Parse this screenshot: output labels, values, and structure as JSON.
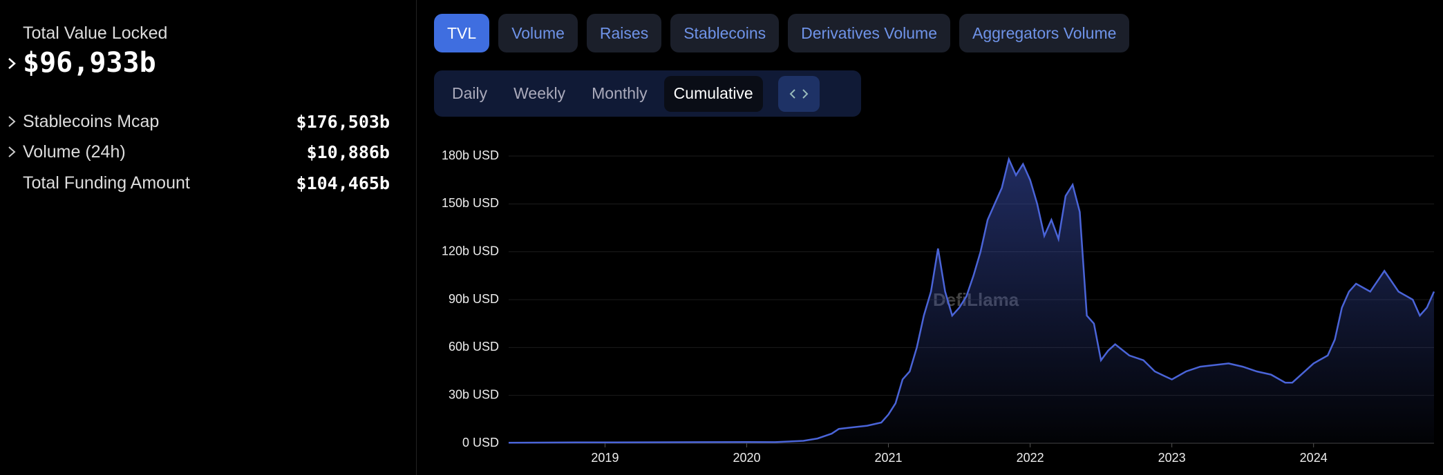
{
  "sidebar": {
    "main": {
      "label": "Total Value Locked",
      "value": "$96,933b"
    },
    "rows": [
      {
        "label": "Stablecoins Mcap",
        "value": "$176,503b"
      },
      {
        "label": "Volume (24h)",
        "value": "$10,886b"
      },
      {
        "label": "Total Funding Amount",
        "value": "$104,465b"
      }
    ]
  },
  "tabs": [
    "TVL",
    "Volume",
    "Raises",
    "Stablecoins",
    "Derivatives Volume",
    "Aggregators Volume"
  ],
  "periods": [
    "Daily",
    "Weekly",
    "Monthly",
    "Cumulative"
  ],
  "watermark": "DefiLlama",
  "chart_data": {
    "type": "area",
    "color": "#4a64d8",
    "x": [
      2018.32,
      2018.8,
      2019.3,
      2019.7,
      2020.0,
      2020.2,
      2020.4,
      2020.5,
      2020.6,
      2020.65,
      2020.75,
      2020.85,
      2020.95,
      2021.0,
      2021.05,
      2021.1,
      2021.15,
      2021.2,
      2021.25,
      2021.3,
      2021.35,
      2021.4,
      2021.45,
      2021.5,
      2021.55,
      2021.6,
      2021.65,
      2021.7,
      2021.75,
      2021.8,
      2021.85,
      2021.9,
      2021.95,
      2022.0,
      2022.05,
      2022.1,
      2022.15,
      2022.2,
      2022.25,
      2022.3,
      2022.35,
      2022.4,
      2022.45,
      2022.5,
      2022.55,
      2022.6,
      2022.7,
      2022.8,
      2022.88,
      2022.95,
      2023.0,
      2023.1,
      2023.2,
      2023.3,
      2023.4,
      2023.5,
      2023.6,
      2023.7,
      2023.8,
      2023.85,
      2023.9,
      2024.0,
      2024.1,
      2024.15,
      2024.2,
      2024.25,
      2024.3,
      2024.4,
      2024.5,
      2024.6,
      2024.7,
      2024.75,
      2024.8,
      2024.85
    ],
    "values": [
      0.3,
      0.5,
      0.6,
      0.7,
      0.8,
      0.7,
      1.5,
      3,
      6,
      9,
      10,
      11,
      13,
      18,
      25,
      40,
      45,
      60,
      80,
      95,
      122,
      95,
      80,
      85,
      92,
      105,
      120,
      140,
      150,
      160,
      178,
      168,
      175,
      165,
      150,
      130,
      140,
      128,
      155,
      162,
      145,
      80,
      75,
      52,
      58,
      62,
      55,
      52,
      45,
      42,
      40,
      45,
      48,
      49,
      50,
      48,
      45,
      43,
      38,
      38,
      42,
      50,
      55,
      65,
      85,
      95,
      100,
      95,
      108,
      95,
      90,
      80,
      85,
      95
    ],
    "xlim": [
      2018.32,
      2024.85
    ],
    "xticks": [
      2019,
      2020,
      2021,
      2022,
      2023,
      2024
    ],
    "ylim": [
      0,
      180
    ],
    "yticks": [
      {
        "value": 0,
        "label": "0 USD"
      },
      {
        "value": 30,
        "label": "30b USD"
      },
      {
        "value": 60,
        "label": "60b USD"
      },
      {
        "value": 90,
        "label": "90b USD"
      },
      {
        "value": 120,
        "label": "120b USD"
      },
      {
        "value": 150,
        "label": "150b USD"
      },
      {
        "value": 180,
        "label": "180b USD"
      }
    ],
    "grid": true
  }
}
